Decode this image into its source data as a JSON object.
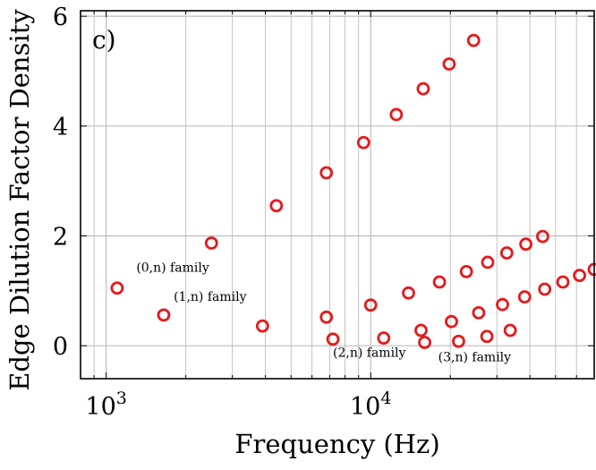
{
  "chart_data": {
    "type": "scatter",
    "panel_label": "c)",
    "xlabel": "Frequency (Hz)",
    "ylabel": "Edge Dilution Factor Density",
    "xscale": "log",
    "xlim": [
      800,
      70000
    ],
    "ylim": [
      -0.6,
      6.1
    ],
    "grid": true,
    "x_tick_labels": [
      {
        "value": 1000,
        "base": "10",
        "exp": "3"
      },
      {
        "value": 10000,
        "base": "10",
        "exp": "4"
      }
    ],
    "y_ticks": [
      0,
      2,
      4,
      6
    ],
    "y_tick_labels": [
      "0",
      "2",
      "4",
      "6"
    ],
    "marker_color": "#e41a1c",
    "annotations": [
      {
        "text": "(0,n) family",
        "x": 1300,
        "y": 1.35
      },
      {
        "text": "(1,n) family",
        "x": 1800,
        "y": 0.82
      },
      {
        "text": "(2,n) family",
        "x": 7200,
        "y": -0.2
      },
      {
        "text": "(3,n) family",
        "x": 18000,
        "y": -0.28
      }
    ],
    "series": [
      {
        "x": [
          1100,
          2500,
          4400,
          6800,
          9400,
          12500,
          15800,
          19800,
          24500
        ],
        "y": [
          1.05,
          1.87,
          2.55,
          3.15,
          3.7,
          4.21,
          4.68,
          5.13,
          5.56
        ]
      },
      {
        "x": [
          1650,
          3900,
          6800,
          10000,
          13900,
          18200,
          23000,
          27700,
          32700,
          38600,
          44700
        ],
        "y": [
          0.56,
          0.36,
          0.52,
          0.74,
          0.96,
          1.16,
          1.35,
          1.52,
          1.69,
          1.85,
          1.99
        ]
      },
      {
        "x": [
          7200,
          11200,
          15500,
          20200,
          25600,
          31500,
          38200,
          45500,
          53300,
          61600,
          70000
        ],
        "y": [
          0.12,
          0.14,
          0.28,
          0.44,
          0.6,
          0.75,
          0.89,
          1.03,
          1.16,
          1.28,
          1.39
        ]
      },
      {
        "x": [
          16000,
          21500,
          27500,
          33700
        ],
        "y": [
          0.06,
          0.08,
          0.17,
          0.28
        ]
      }
    ]
  }
}
